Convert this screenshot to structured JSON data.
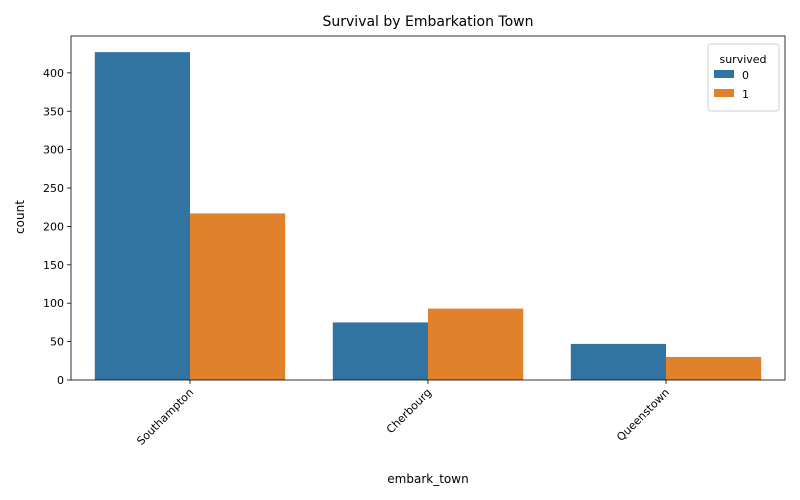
{
  "chart_data": {
    "type": "bar",
    "title": "Survival by Embarkation Town",
    "xlabel": "embark_town",
    "ylabel": "count",
    "categories": [
      "Southampton",
      "Cherbourg",
      "Queenstown"
    ],
    "series": [
      {
        "name": "0",
        "values": [
          427,
          75,
          47
        ],
        "color": "#3274a1"
      },
      {
        "name": "1",
        "values": [
          217,
          93,
          30
        ],
        "color": "#e1812c"
      }
    ],
    "ylim": [
      0,
      448
    ],
    "yticks": [
      0,
      50,
      100,
      150,
      200,
      250,
      300,
      350,
      400
    ],
    "legend": {
      "title": "survived",
      "placement": "top-right"
    },
    "grid": false,
    "xtick_rotation": 45
  }
}
